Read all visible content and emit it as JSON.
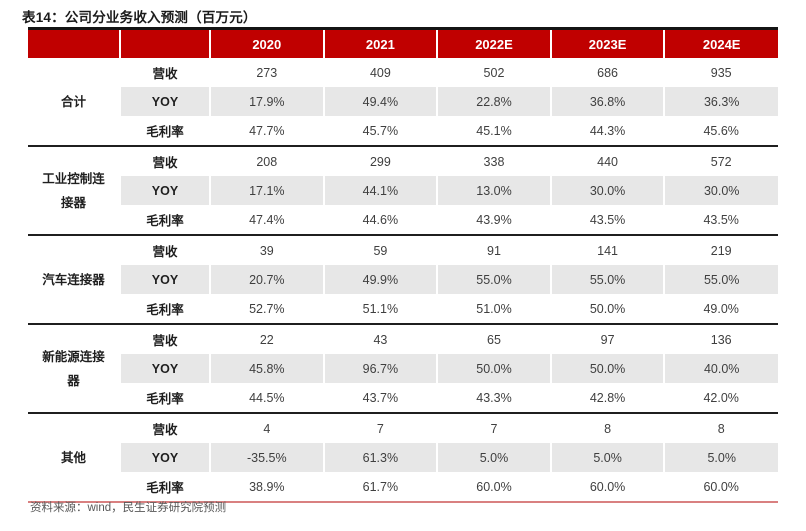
{
  "page": {
    "title": "表14：公司分业务收入预测（百万元）",
    "source_note": "资料来源：wind，民生证券研究院预测"
  },
  "colors": {
    "header_bg": "#c00000",
    "header_text": "#ffffff",
    "alt_row_bg": "#e7e7e7",
    "group_border": "#1f1f1f",
    "bottom_border": "#d98080",
    "body_text": "#3f3f3f",
    "footer_text": "#595959"
  },
  "chart_data": {
    "type": "table",
    "title": "表14：公司分业务收入预测（百万元）",
    "columns": [
      "2020",
      "2021",
      "2022E",
      "2023E",
      "2024E"
    ],
    "metric_labels": [
      "营收",
      "YOY",
      "毛利率"
    ],
    "groups": [
      {
        "name": "合计",
        "rows": [
          {
            "label": "营收",
            "values": [
              "273",
              "409",
              "502",
              "686",
              "935"
            ]
          },
          {
            "label": "YOY",
            "values": [
              "17.9%",
              "49.4%",
              "22.8%",
              "36.8%",
              "36.3%"
            ]
          },
          {
            "label": "毛利率",
            "values": [
              "47.7%",
              "45.7%",
              "45.1%",
              "44.3%",
              "45.6%"
            ]
          }
        ]
      },
      {
        "name": "工业控制连接器",
        "rows": [
          {
            "label": "营收",
            "values": [
              "208",
              "299",
              "338",
              "440",
              "572"
            ]
          },
          {
            "label": "YOY",
            "values": [
              "17.1%",
              "44.1%",
              "13.0%",
              "30.0%",
              "30.0%"
            ]
          },
          {
            "label": "毛利率",
            "values": [
              "47.4%",
              "44.6%",
              "43.9%",
              "43.5%",
              "43.5%"
            ]
          }
        ]
      },
      {
        "name": "汽车连接器",
        "rows": [
          {
            "label": "营收",
            "values": [
              "39",
              "59",
              "91",
              "141",
              "219"
            ]
          },
          {
            "label": "YOY",
            "values": [
              "20.7%",
              "49.9%",
              "55.0%",
              "55.0%",
              "55.0%"
            ]
          },
          {
            "label": "毛利率",
            "values": [
              "52.7%",
              "51.1%",
              "51.0%",
              "50.0%",
              "49.0%"
            ]
          }
        ]
      },
      {
        "name": "新能源连接器",
        "rows": [
          {
            "label": "营收",
            "values": [
              "22",
              "43",
              "65",
              "97",
              "136"
            ]
          },
          {
            "label": "YOY",
            "values": [
              "45.8%",
              "96.7%",
              "50.0%",
              "50.0%",
              "40.0%"
            ]
          },
          {
            "label": "毛利率",
            "values": [
              "44.5%",
              "43.7%",
              "43.3%",
              "42.8%",
              "42.0%"
            ]
          }
        ]
      },
      {
        "name": "其他",
        "rows": [
          {
            "label": "营收",
            "values": [
              "4",
              "7",
              "7",
              "8",
              "8"
            ]
          },
          {
            "label": "YOY",
            "values": [
              "-35.5%",
              "61.3%",
              "5.0%",
              "5.0%",
              "5.0%"
            ]
          },
          {
            "label": "毛利率",
            "values": [
              "38.9%",
              "61.7%",
              "60.0%",
              "60.0%",
              "60.0%"
            ]
          }
        ]
      }
    ]
  }
}
